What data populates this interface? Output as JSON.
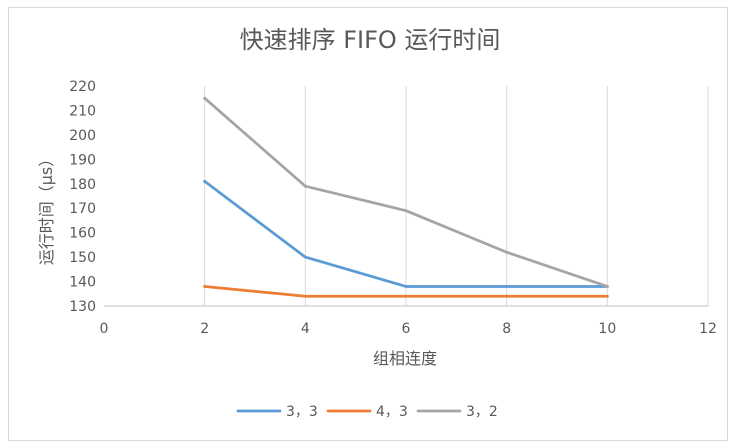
{
  "chart_data": {
    "type": "line",
    "title": "快速排序 FIFO 运行时间",
    "xlabel": "组相连度",
    "ylabel": "运行时间（μs）",
    "xlim": [
      0,
      12
    ],
    "ylim": [
      130,
      220
    ],
    "x_ticks": [
      "0",
      "2",
      "4",
      "6",
      "8",
      "10",
      "12"
    ],
    "y_ticks": [
      "130",
      "140",
      "150",
      "160",
      "170",
      "180",
      "190",
      "200",
      "210",
      "220"
    ],
    "grid": "vertical",
    "legend_position": "bottom",
    "x": [
      2,
      4,
      6,
      8,
      10
    ],
    "series": [
      {
        "name": "3，3",
        "color": "#5b9bd5",
        "values": [
          181,
          150,
          138,
          138,
          138
        ]
      },
      {
        "name": "4，3",
        "color": "#ed7d31",
        "values": [
          138,
          134,
          134,
          134,
          134
        ]
      },
      {
        "name": "3，2",
        "color": "#a5a5a5",
        "values": [
          215,
          179,
          169,
          152,
          138
        ]
      }
    ]
  }
}
